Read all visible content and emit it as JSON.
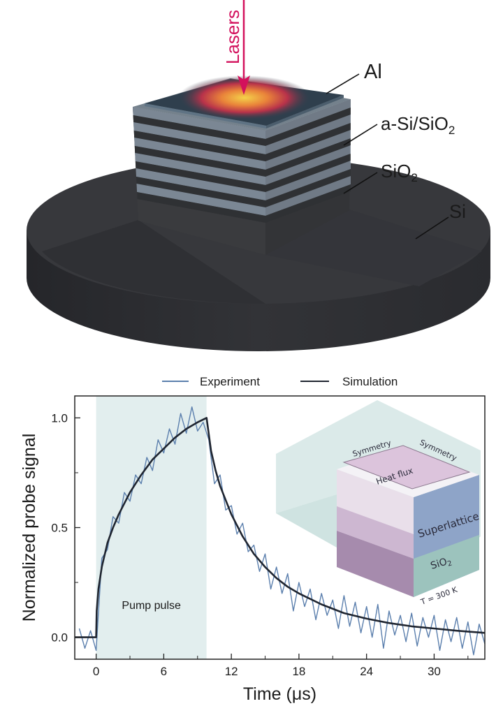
{
  "schematic": {
    "labels": {
      "lasers": "Lasers",
      "al": "Al",
      "superlattice": "a-Si/SiO",
      "superlattice_sub": "2",
      "sio2": "SiO",
      "sio2_sub": "2",
      "si": "Si"
    },
    "colors": {
      "laser_arrow": "#d3105c",
      "substrate": "#2e2f33",
      "layer_light": "#7b8794",
      "layer_dark": "#2f3134",
      "al_plate": "#2f3f4d"
    }
  },
  "chart_data": {
    "type": "line",
    "xlabel": "Time (μs)",
    "ylabel": "Normalized probe signal",
    "xlim": [
      -1.9,
      34.5
    ],
    "ylim": [
      -0.1,
      1.1
    ],
    "xticks_major": [
      0,
      6,
      12,
      18,
      24,
      30
    ],
    "xtick_labels": [
      "0",
      "6",
      "12",
      "18",
      "24",
      "30"
    ],
    "yticks_major": [
      0.0,
      0.5,
      1.0
    ],
    "ytick_labels": [
      "0.0",
      "0.5",
      "1.0"
    ],
    "grid": false,
    "legend": {
      "placement": "top-outside",
      "entries": [
        "Experiment",
        "Simulation"
      ]
    },
    "shaded_region": {
      "label": "Pump pulse",
      "x_range": [
        0,
        9.8
      ],
      "color": "#e2eeee"
    },
    "series": [
      {
        "name": "Experiment",
        "color": "#5b7fad",
        "x": [
          -1.5,
          -1.0,
          -0.5,
          0.0,
          0.5,
          1.0,
          1.5,
          2.0,
          2.5,
          3.0,
          3.5,
          4.0,
          4.5,
          5.0,
          5.5,
          6.0,
          6.5,
          7.0,
          7.5,
          8.0,
          8.5,
          9.0,
          9.5,
          10.0,
          10.5,
          11.0,
          11.5,
          12.0,
          12.5,
          13.0,
          13.5,
          14.0,
          14.5,
          15.0,
          15.5,
          16.0,
          16.5,
          17.0,
          17.5,
          18.0,
          18.5,
          19.0,
          19.5,
          20.0,
          20.5,
          21.0,
          21.5,
          22.0,
          22.5,
          23.0,
          23.5,
          24.0,
          24.5,
          25.0,
          25.5,
          26.0,
          26.5,
          27.0,
          27.5,
          28.0,
          28.5,
          29.0,
          29.5,
          30.0,
          30.5,
          31.0,
          31.5,
          32.0,
          32.5,
          33.0,
          33.5,
          34.0,
          34.5
        ],
        "y": [
          0.04,
          -0.05,
          0.03,
          -0.06,
          0.36,
          0.4,
          0.55,
          0.52,
          0.66,
          0.62,
          0.74,
          0.7,
          0.82,
          0.76,
          0.9,
          0.84,
          0.95,
          0.88,
          1.02,
          0.93,
          1.05,
          0.94,
          0.98,
          0.9,
          0.7,
          0.74,
          0.58,
          0.6,
          0.47,
          0.52,
          0.39,
          0.42,
          0.3,
          0.38,
          0.22,
          0.32,
          0.2,
          0.29,
          0.12,
          0.25,
          0.14,
          0.22,
          0.08,
          0.2,
          0.1,
          0.17,
          0.04,
          0.19,
          0.05,
          0.16,
          0.02,
          0.14,
          0.0,
          0.15,
          -0.05,
          0.12,
          0.01,
          0.1,
          -0.02,
          0.11,
          -0.04,
          0.09,
          0.0,
          0.1,
          -0.06,
          0.08,
          -0.02,
          0.09,
          -0.05,
          0.07,
          -0.08,
          0.06,
          -0.03
        ]
      },
      {
        "name": "Simulation",
        "color": "#1f2530",
        "x": [
          -1.9,
          0,
          0.05,
          0.2,
          0.5,
          1,
          1.5,
          2,
          3,
          4,
          5,
          6,
          7,
          8,
          9,
          9.8,
          10.2,
          10.6,
          11,
          12,
          13,
          14,
          15,
          16,
          17,
          18,
          20,
          22,
          24,
          26,
          28,
          30,
          32,
          34.5
        ],
        "y": [
          0,
          0,
          0.12,
          0.22,
          0.32,
          0.43,
          0.5,
          0.56,
          0.66,
          0.74,
          0.81,
          0.86,
          0.91,
          0.95,
          0.98,
          1.0,
          0.85,
          0.76,
          0.69,
          0.56,
          0.46,
          0.38,
          0.32,
          0.27,
          0.23,
          0.2,
          0.15,
          0.11,
          0.085,
          0.065,
          0.05,
          0.04,
          0.03,
          0.02
        ]
      }
    ],
    "inset": {
      "labels": {
        "symmetry_left": "Symmetry",
        "symmetry_right": "Symmetry",
        "heat_flux": "Heat flux",
        "superlattice": "Superlattice",
        "sio2": "SiO",
        "sio2_sub": "2",
        "boundary": "T = 300 K"
      }
    }
  }
}
